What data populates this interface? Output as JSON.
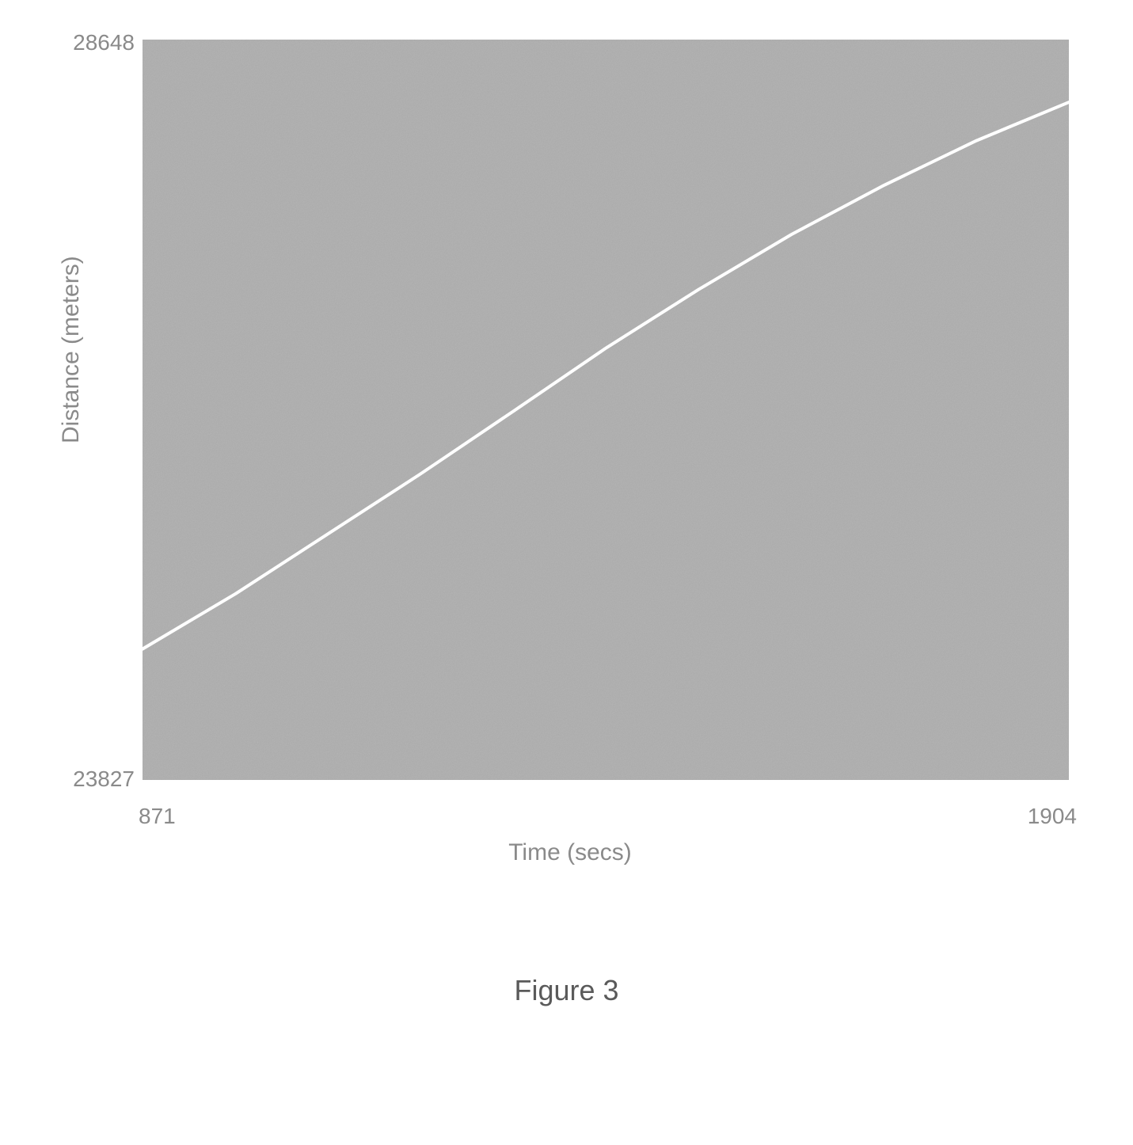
{
  "chart": {
    "type": "line",
    "xlabel": "Time (secs)",
    "ylabel": "Distance (meters)",
    "xlim": [
      871,
      1904
    ],
    "ylim": [
      23827,
      28648
    ],
    "x_tick_min_label": "871",
    "x_tick_max_label": "1904",
    "y_tick_min_label": "23827",
    "y_tick_max_label": "28648",
    "background_color": "#a9a9a9",
    "noise_color": "#989898",
    "line_color": "#ffffff",
    "line_width": 4,
    "label_color": "#8a8a8a",
    "label_fontsize": 30,
    "tick_fontsize": 28,
    "x": [
      871,
      975,
      1078,
      1181,
      1285,
      1388,
      1491,
      1595,
      1698,
      1801,
      1904
    ],
    "y": [
      24680,
      25040,
      25430,
      25820,
      26230,
      26640,
      27020,
      27380,
      27700,
      27990,
      28240
    ]
  },
  "caption": "Figure 3",
  "caption_fontsize": 36,
  "caption_color": "#5a5a5a"
}
